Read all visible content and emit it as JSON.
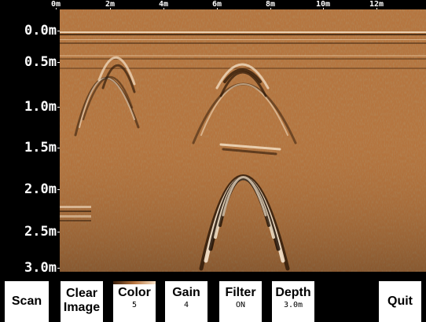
{
  "x_axis": {
    "ticks": [
      "0m",
      "2m",
      "4m",
      "6m",
      "8m",
      "10m",
      "12m"
    ]
  },
  "y_axis": {
    "ticks": [
      "0.0m",
      "0.5m",
      "1.0m",
      "1.5m",
      "2.0m",
      "2.5m",
      "3.0m"
    ]
  },
  "display": {
    "palette": "copper",
    "content": "ground penetrating radar radargram"
  },
  "buttons": {
    "scan": {
      "label": "Scan"
    },
    "clear": {
      "label_line1": "Clear",
      "label_line2": "Image"
    },
    "color": {
      "label": "Color",
      "value": "5"
    },
    "gain": {
      "label": "Gain",
      "value": "4"
    },
    "filter": {
      "label": "Filter",
      "value": "ON"
    },
    "depth": {
      "label": "Depth",
      "value": "3.0m"
    },
    "quit": {
      "label": "Quit"
    }
  },
  "colors": {
    "background": "#000000",
    "button": "#ffffff",
    "radar_mid": "#b5753f"
  }
}
